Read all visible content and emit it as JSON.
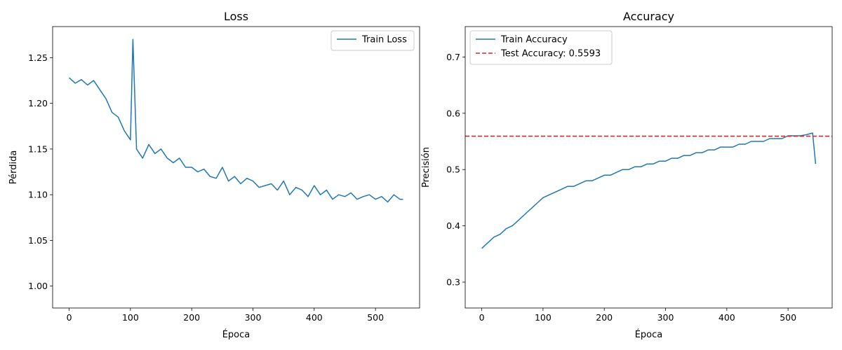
{
  "chart_data": [
    {
      "type": "line",
      "title": "Loss",
      "xlabel": "Época",
      "ylabel": "Pérdida",
      "xlim": [
        -27,
        572
      ],
      "ylim": [
        0.976,
        1.284
      ],
      "xticks": [
        0,
        100,
        200,
        300,
        400,
        500
      ],
      "yticks": [
        1.0,
        1.05,
        1.1,
        1.15,
        1.2,
        1.25
      ],
      "ytick_labels": [
        "1.00",
        "1.05",
        "1.10",
        "1.15",
        "1.20",
        "1.25"
      ],
      "grid": false,
      "legend": "top-right",
      "series": [
        {
          "name": "Train Loss",
          "color": "#1f77b4",
          "x": [
            0,
            10,
            20,
            30,
            40,
            50,
            60,
            70,
            80,
            90,
            100,
            104,
            110,
            120,
            130,
            140,
            150,
            160,
            170,
            180,
            190,
            200,
            210,
            220,
            230,
            240,
            250,
            260,
            270,
            280,
            290,
            300,
            310,
            320,
            330,
            340,
            350,
            360,
            370,
            380,
            390,
            400,
            410,
            420,
            430,
            440,
            450,
            460,
            470,
            480,
            490,
            500,
            510,
            520,
            530,
            540,
            545
          ],
          "y": [
            1.228,
            1.222,
            1.226,
            1.22,
            1.225,
            1.215,
            1.205,
            1.19,
            1.185,
            1.17,
            1.16,
            1.27,
            1.15,
            1.14,
            1.155,
            1.145,
            1.15,
            1.14,
            1.135,
            1.14,
            1.13,
            1.13,
            1.125,
            1.128,
            1.12,
            1.118,
            1.13,
            1.115,
            1.12,
            1.112,
            1.118,
            1.115,
            1.108,
            1.11,
            1.112,
            1.105,
            1.115,
            1.1,
            1.108,
            1.105,
            1.098,
            1.11,
            1.1,
            1.105,
            1.095,
            1.1,
            1.098,
            1.102,
            1.095,
            1.098,
            1.1,
            1.095,
            1.098,
            1.092,
            1.1,
            1.095,
            1.095
          ]
        }
      ]
    },
    {
      "type": "line",
      "title": "Accuracy",
      "xlabel": "Época",
      "ylabel": "Precisión",
      "xlim": [
        -27,
        572
      ],
      "ylim": [
        0.254,
        0.754
      ],
      "xticks": [
        0,
        100,
        200,
        300,
        400,
        500
      ],
      "yticks": [
        0.3,
        0.4,
        0.5,
        0.6,
        0.7
      ],
      "ytick_labels": [
        "0.3",
        "0.4",
        "0.5",
        "0.6",
        "0.7"
      ],
      "grid": false,
      "legend": "top-left",
      "series": [
        {
          "name": "Train Accuracy",
          "color": "#1f77b4",
          "x": [
            0,
            10,
            20,
            30,
            40,
            50,
            60,
            70,
            80,
            90,
            100,
            110,
            120,
            130,
            140,
            150,
            160,
            170,
            180,
            190,
            200,
            210,
            220,
            230,
            240,
            250,
            260,
            270,
            280,
            290,
            300,
            310,
            320,
            330,
            340,
            350,
            360,
            370,
            380,
            390,
            400,
            410,
            420,
            430,
            440,
            450,
            460,
            470,
            480,
            490,
            500,
            510,
            520,
            530,
            540,
            545
          ],
          "y": [
            0.36,
            0.37,
            0.38,
            0.385,
            0.395,
            0.4,
            0.41,
            0.42,
            0.43,
            0.44,
            0.45,
            0.455,
            0.46,
            0.465,
            0.47,
            0.47,
            0.475,
            0.48,
            0.48,
            0.485,
            0.49,
            0.49,
            0.495,
            0.5,
            0.5,
            0.505,
            0.505,
            0.51,
            0.51,
            0.515,
            0.515,
            0.52,
            0.52,
            0.525,
            0.525,
            0.53,
            0.53,
            0.535,
            0.535,
            0.54,
            0.54,
            0.54,
            0.545,
            0.545,
            0.55,
            0.55,
            0.55,
            0.555,
            0.555,
            0.555,
            0.56,
            0.56,
            0.56,
            0.562,
            0.565,
            0.51
          ]
        },
        {
          "name": "Test Accuracy: 0.5593",
          "color": "#d62728",
          "style": "dashed",
          "hline": 0.5593
        }
      ]
    }
  ]
}
